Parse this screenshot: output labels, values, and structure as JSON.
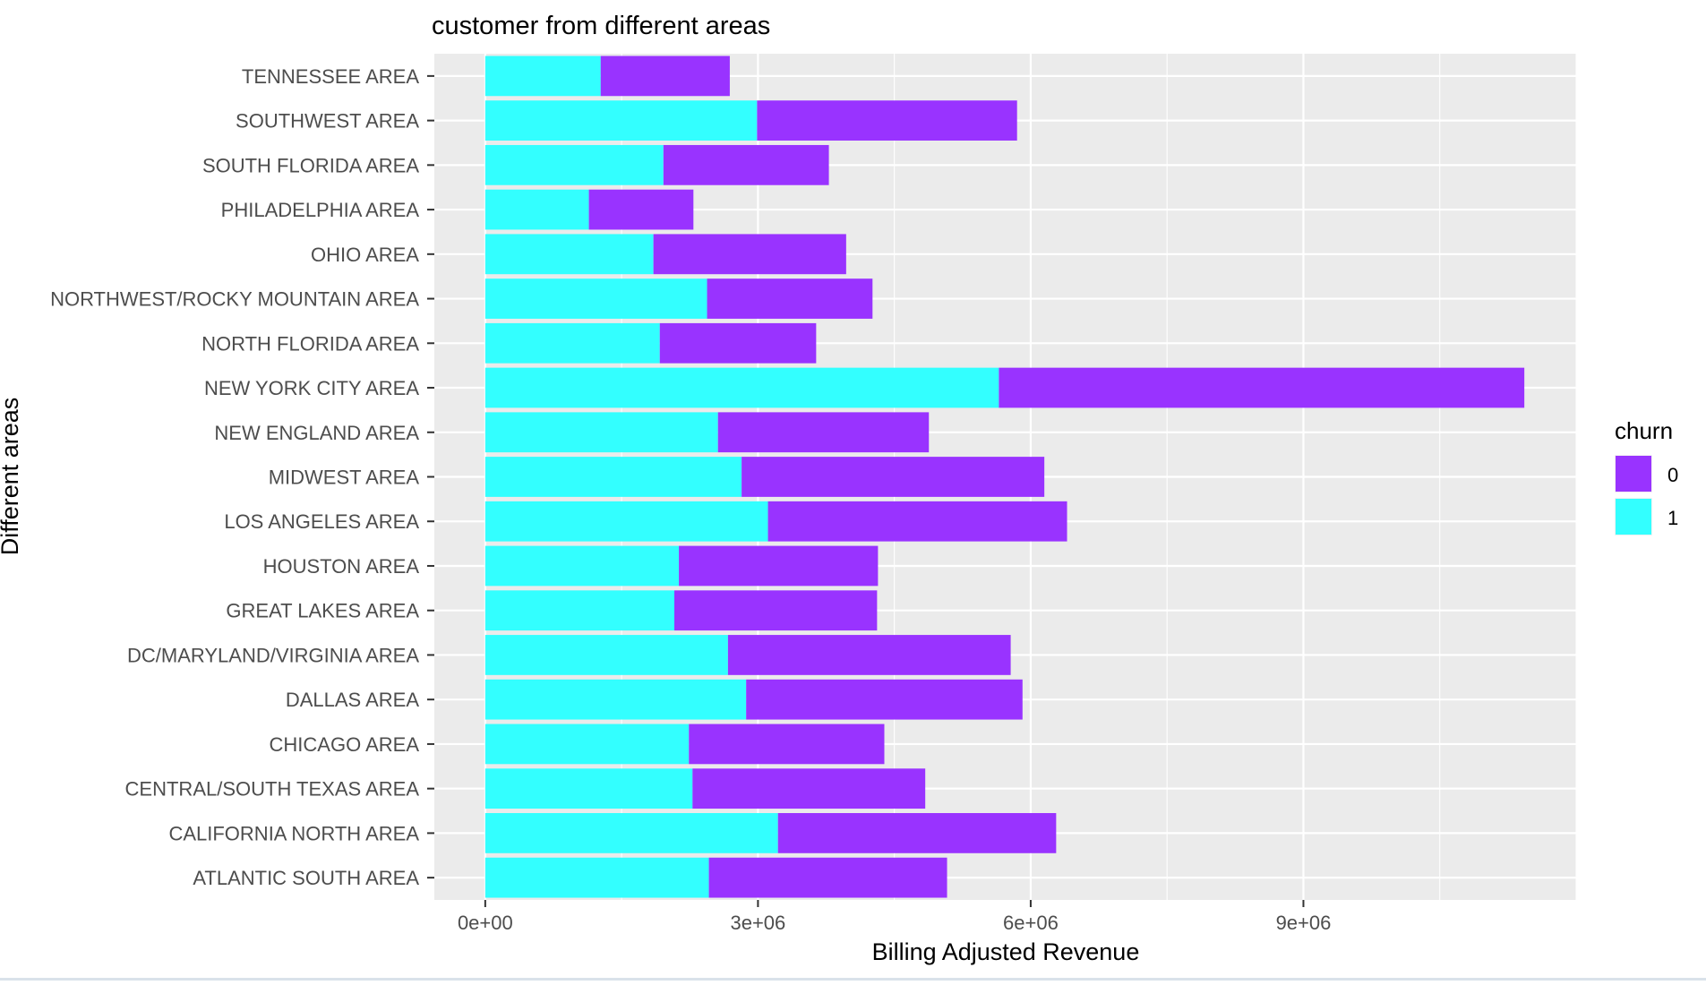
{
  "chart_data": {
    "type": "bar",
    "orientation": "horizontal",
    "stacked": true,
    "title": "customer from different areas",
    "xlabel": "Billing Adjusted Revenue",
    "ylabel": "Different areas",
    "xlim": [
      -560000,
      12000000
    ],
    "x_ticks": [
      0,
      3000000,
      6000000,
      9000000
    ],
    "x_tick_labels": [
      "0e+00",
      "3e+06",
      "6e+06",
      "9e+06"
    ],
    "grid": true,
    "legend": {
      "title": "churn",
      "position": "right",
      "entries": [
        {
          "label": "0",
          "color": "#9933ff"
        },
        {
          "label": "1",
          "color": "#33ffff"
        }
      ]
    },
    "categories": [
      "ATLANTIC SOUTH AREA",
      "CALIFORNIA NORTH AREA",
      "CENTRAL/SOUTH TEXAS AREA",
      "CHICAGO AREA",
      "DALLAS AREA",
      "DC/MARYLAND/VIRGINIA AREA",
      "GREAT LAKES AREA",
      "HOUSTON AREA",
      "LOS ANGELES AREA",
      "MIDWEST AREA",
      "NEW ENGLAND AREA",
      "NEW YORK CITY AREA",
      "NORTH FLORIDA AREA",
      "NORTHWEST/ROCKY MOUNTAIN AREA",
      "OHIO AREA",
      "PHILADELPHIA AREA",
      "SOUTH FLORIDA AREA",
      "SOUTHWEST AREA",
      "TENNESSEE AREA"
    ],
    "series": [
      {
        "name": "1",
        "color": "#33ffff",
        "values": [
          2460000,
          3220000,
          2280000,
          2240000,
          2870000,
          2670000,
          2080000,
          2130000,
          3110000,
          2820000,
          2560000,
          5650000,
          1920000,
          2440000,
          1850000,
          1140000,
          1960000,
          2990000,
          1270000
        ]
      },
      {
        "name": "0",
        "color": "#9933ff",
        "values": [
          2620000,
          3060000,
          2560000,
          2150000,
          3040000,
          3110000,
          2230000,
          2190000,
          3290000,
          3330000,
          2320000,
          5780000,
          1720000,
          1820000,
          2120000,
          1150000,
          1820000,
          2860000,
          1420000
        ]
      }
    ]
  }
}
